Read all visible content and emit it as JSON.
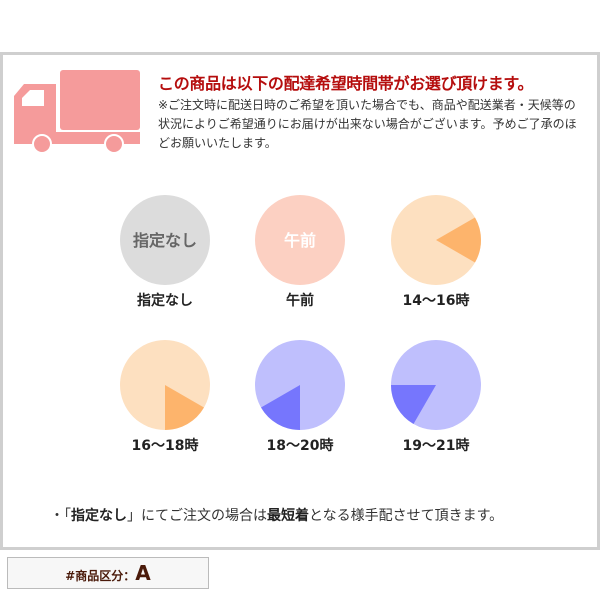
{
  "header": {
    "title": "この商品は以下の配達希望時間帯がお選び頂けます。",
    "note": "※ご注文時に配送日時のご希望を頂いた場合でも、商品や配送業者・天候等の状況によりご希望通りにお届けが出来ない場合がございます。予めご了承のほどお願いいたします。",
    "icon": "truck-icon",
    "icon_color": "#f59b9b"
  },
  "slots": [
    {
      "label": "指定なし",
      "inner_text": "指定なし",
      "base": "#dcdcdc",
      "accent": null,
      "text_color": "#666666",
      "clock_from": null,
      "clock_to": null
    },
    {
      "label": "午前",
      "inner_text": "午前",
      "base": "#fcd0c2",
      "accent": null,
      "text_color": "#ffffff",
      "clock_from": null,
      "clock_to": null
    },
    {
      "label": "14〜16時",
      "inner_text": "",
      "base": "#fde0c0",
      "accent": "#fdb46c",
      "clock_from": 2,
      "clock_to": 4
    },
    {
      "label": "16〜18時",
      "inner_text": "",
      "base": "#fde0c0",
      "accent": "#fdb46c",
      "clock_from": 4,
      "clock_to": 6
    },
    {
      "label": "18〜20時",
      "inner_text": "",
      "base": "#bfbffd",
      "accent": "#7676fd",
      "clock_from": 6,
      "clock_to": 8
    },
    {
      "label": "19〜21時",
      "inner_text": "",
      "base": "#bfbffd",
      "accent": "#7676fd",
      "clock_from": 7,
      "clock_to": 9
    }
  ],
  "footer_note": {
    "prefix": "・「",
    "bold1": "指定なし",
    "mid": "」にてご注文の場合は",
    "bold2": "最短着",
    "suffix": "となる様手配させて頂きます。"
  },
  "category": {
    "label": "#商品区分：",
    "value": "A"
  }
}
